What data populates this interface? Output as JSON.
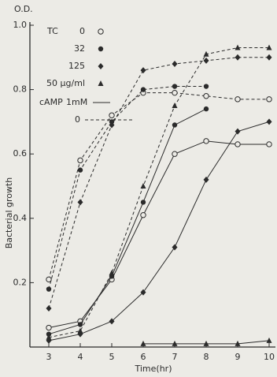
{
  "chart_data": {
    "type": "line",
    "y_unit_label": "O.D.",
    "x_label": "Time(hr)",
    "y_label": "Bacterial growth",
    "xlim": [
      2.4,
      10.2
    ],
    "xticks": [
      3,
      4,
      5,
      6,
      7,
      8,
      9,
      10
    ],
    "ylim": [
      0,
      1.0
    ],
    "yticks": [
      0.2,
      0.4,
      0.6,
      0.8,
      {
        "value": 1.0,
        "label": "1.0"
      }
    ],
    "color": "#2b2b2b",
    "legend": {
      "marker_title": "TC",
      "markers": [
        {
          "label": "0",
          "marker": "circle-open"
        },
        {
          "label": "32",
          "marker": "circle-filled"
        },
        {
          "label": "125",
          "marker": "diamond"
        },
        {
          "label": "50 µg/ml",
          "marker": "triangle"
        }
      ],
      "line_title": "cAMP",
      "lines": [
        {
          "label": "1mM",
          "dashed": false
        },
        {
          "label": "0",
          "dashed": true
        }
      ]
    },
    "series": [
      {
        "marker": "circle-open",
        "dashed": true,
        "x": [
          3,
          4,
          5,
          6,
          7,
          8,
          9,
          10
        ],
        "values": [
          0.21,
          0.58,
          0.72,
          0.79,
          0.79,
          0.78,
          0.77,
          0.77
        ]
      },
      {
        "marker": "circle-filled",
        "dashed": true,
        "x": [
          3,
          4,
          5,
          6,
          7,
          8
        ],
        "values": [
          0.18,
          0.55,
          0.7,
          0.8,
          0.81,
          0.81
        ]
      },
      {
        "marker": "diamond",
        "dashed": true,
        "x": [
          3,
          4,
          5,
          6,
          7,
          8,
          9,
          10
        ],
        "values": [
          0.12,
          0.45,
          0.69,
          0.86,
          0.88,
          0.89,
          0.9,
          0.9
        ]
      },
      {
        "marker": "triangle",
        "dashed": true,
        "x": [
          3,
          4,
          5,
          6,
          7,
          8,
          9,
          10
        ],
        "values": [
          0.03,
          0.05,
          0.23,
          0.5,
          0.75,
          0.91,
          0.93,
          0.93
        ]
      },
      {
        "marker": "circle-open",
        "dashed": false,
        "x": [
          3,
          4,
          5,
          6,
          7,
          8,
          9,
          10
        ],
        "values": [
          0.06,
          0.08,
          0.21,
          0.41,
          0.6,
          0.64,
          0.63,
          0.63
        ]
      },
      {
        "marker": "circle-filled",
        "dashed": false,
        "x": [
          3,
          4,
          5,
          6,
          7,
          8
        ],
        "values": [
          0.04,
          0.07,
          0.22,
          0.45,
          0.69,
          0.74
        ]
      },
      {
        "marker": "diamond",
        "dashed": false,
        "x": [
          3,
          4,
          5,
          6,
          7,
          8,
          9,
          10
        ],
        "values": [
          0.02,
          0.04,
          0.08,
          0.17,
          0.31,
          0.52,
          0.67,
          0.7
        ]
      },
      {
        "marker": "triangle",
        "dashed": false,
        "x": [
          6,
          7,
          8,
          9,
          10
        ],
        "values": [
          0.01,
          0.01,
          0.01,
          0.01,
          0.02
        ]
      }
    ]
  }
}
